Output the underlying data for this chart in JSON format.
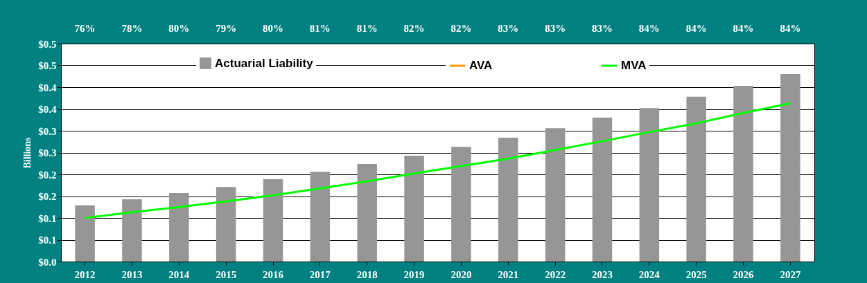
{
  "chart_data": {
    "type": "bar",
    "ylabel": "Billions",
    "categories": [
      "2012",
      "2013",
      "2014",
      "2015",
      "2016",
      "2017",
      "2018",
      "2019",
      "2020",
      "2021",
      "2022",
      "2023",
      "2024",
      "2025",
      "2026",
      "2027"
    ],
    "series": [
      {
        "name": "Actuarial Liability",
        "type": "bar",
        "color": "#969696",
        "values": [
          0.129,
          0.143,
          0.157,
          0.171,
          0.189,
          0.206,
          0.224,
          0.243,
          0.263,
          0.284,
          0.306,
          0.33,
          0.352,
          0.378,
          0.403,
          0.43
        ]
      },
      {
        "name": "AVA",
        "type": "line",
        "color": "#ff9900",
        "values": [
          null,
          null,
          null,
          null,
          null,
          null,
          null,
          null,
          null,
          null,
          null,
          null,
          null,
          null,
          null,
          null
        ]
      },
      {
        "name": "MVA",
        "type": "line",
        "color": "#00ff00",
        "values": [
          0.1,
          0.113,
          0.125,
          0.138,
          0.152,
          0.168,
          0.184,
          0.202,
          0.219,
          0.236,
          0.256,
          0.276,
          0.297,
          0.317,
          0.341,
          0.363
        ]
      }
    ],
    "ylim": [
      0,
      0.5
    ],
    "yticks": [
      {
        "value": 0,
        "label": "$0.0"
      },
      {
        "value": 0.05,
        "label": "$0.1"
      },
      {
        "value": 0.1,
        "label": "$0.1"
      },
      {
        "value": 0.15,
        "label": "$0.2"
      },
      {
        "value": 0.2,
        "label": "$0.2"
      },
      {
        "value": 0.25,
        "label": "$0.3"
      },
      {
        "value": 0.3,
        "label": "$0.3"
      },
      {
        "value": 0.35,
        "label": "$0.4"
      },
      {
        "value": 0.4,
        "label": "$0.4"
      },
      {
        "value": 0.45,
        "label": "$0.5"
      },
      {
        "value": 0.5,
        "label": "$0.5"
      }
    ],
    "grid": true,
    "legend": "top",
    "annotations": [
      "76%",
      "78%",
      "80%",
      "79%",
      "80%",
      "81%",
      "81%",
      "82%",
      "82%",
      "83%",
      "83%",
      "83%",
      "84%",
      "84%",
      "84%",
      "84%"
    ]
  }
}
